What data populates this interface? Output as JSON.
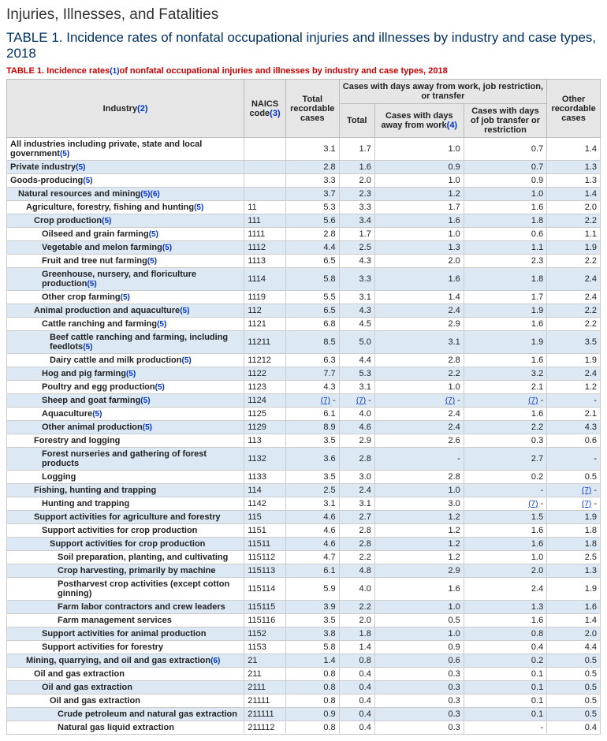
{
  "page_title": "Injuries, Illnesses, and Fatalities",
  "table_title": "TABLE 1. Incidence rates of nonfatal occupational injuries and illnesses by industry and case types, 2018",
  "table_subtitle_prefix": "TABLE 1. Incidence rates",
  "table_subtitle_suffix": "of nonfatal occupational injuries and illnesses by industry and case types, 2018",
  "fn": {
    "1": "(1)",
    "2": "(2)",
    "3": "(3)",
    "4": "(4)",
    "5": "(5)",
    "6": "(6)",
    "7": "(7)"
  },
  "headers": {
    "industry": "Industry",
    "naics": "NAICS code",
    "total_recordable": "Total recordable cases",
    "cases_group": "Cases with days away from work, job restriction, or transfer",
    "total": "Total",
    "days_away": "Cases with days away from work",
    "job_transfer": "Cases with days of job transfer or restriction",
    "other": "Other recordable cases"
  },
  "col_widths": {
    "industry": "40%",
    "naics": "7%",
    "trc": "9%",
    "tot": "6%",
    "daw": "15%",
    "jtr": "14%",
    "other": "9%"
  },
  "rows": [
    {
      "ind": 0,
      "label": "All industries including private, state and local government",
      "fn": "5",
      "naics": "",
      "v": [
        "3.1",
        "1.7",
        "1.0",
        "0.7",
        "1.4"
      ]
    },
    {
      "ind": 0,
      "label": "Private industry",
      "fn": "5",
      "naics": "",
      "v": [
        "2.8",
        "1.6",
        "0.9",
        "0.7",
        "1.3"
      ]
    },
    {
      "ind": 0,
      "label": "Goods-producing",
      "fn": "5",
      "naics": "",
      "v": [
        "3.3",
        "2.0",
        "1.0",
        "0.9",
        "1.3"
      ]
    },
    {
      "ind": 1,
      "label": "Natural resources and mining",
      "fn": "56",
      "naics": "",
      "v": [
        "3.7",
        "2.3",
        "1.2",
        "1.0",
        "1.4"
      ]
    },
    {
      "ind": 2,
      "label": "Agriculture, forestry, fishing and hunting",
      "fn": "5",
      "naics": "11",
      "v": [
        "5.3",
        "3.3",
        "1.7",
        "1.6",
        "2.0"
      ]
    },
    {
      "ind": 3,
      "label": "Crop production",
      "fn": "5",
      "naics": "111",
      "v": [
        "5.6",
        "3.4",
        "1.6",
        "1.8",
        "2.2"
      ]
    },
    {
      "ind": 4,
      "label": "Oilseed and grain farming",
      "fn": "5",
      "naics": "1111",
      "v": [
        "2.8",
        "1.7",
        "1.0",
        "0.6",
        "1.1"
      ]
    },
    {
      "ind": 4,
      "label": "Vegetable and melon farming",
      "fn": "5",
      "naics": "1112",
      "v": [
        "4.4",
        "2.5",
        "1.3",
        "1.1",
        "1.9"
      ]
    },
    {
      "ind": 4,
      "label": "Fruit and tree nut farming",
      "fn": "5",
      "naics": "1113",
      "v": [
        "6.5",
        "4.3",
        "2.0",
        "2.3",
        "2.2"
      ]
    },
    {
      "ind": 4,
      "label": "Greenhouse, nursery, and floriculture production",
      "fn": "5",
      "naics": "1114",
      "v": [
        "5.8",
        "3.3",
        "1.6",
        "1.8",
        "2.4"
      ]
    },
    {
      "ind": 4,
      "label": "Other crop farming",
      "fn": "5",
      "naics": "1119",
      "v": [
        "5.5",
        "3.1",
        "1.4",
        "1.7",
        "2.4"
      ]
    },
    {
      "ind": 3,
      "label": "Animal production and aquaculture",
      "fn": "5",
      "naics": "112",
      "v": [
        "6.5",
        "4.3",
        "2.4",
        "1.9",
        "2.2"
      ]
    },
    {
      "ind": 4,
      "label": "Cattle ranching and farming",
      "fn": "5",
      "naics": "1121",
      "v": [
        "6.8",
        "4.5",
        "2.9",
        "1.6",
        "2.2"
      ]
    },
    {
      "ind": 5,
      "label": "Beef cattle ranching and farming, including feedlots",
      "fn": "5",
      "naics": "11211",
      "v": [
        "8.5",
        "5.0",
        "3.1",
        "1.9",
        "3.5"
      ]
    },
    {
      "ind": 5,
      "label": "Dairy cattle and milk production",
      "fn": "5",
      "naics": "11212",
      "v": [
        "6.3",
        "4.4",
        "2.8",
        "1.6",
        "1.9"
      ]
    },
    {
      "ind": 4,
      "label": "Hog and pig farming",
      "fn": "5",
      "naics": "1122",
      "v": [
        "7.7",
        "5.3",
        "2.2",
        "3.2",
        "2.4"
      ]
    },
    {
      "ind": 4,
      "label": "Poultry and egg production",
      "fn": "5",
      "naics": "1123",
      "v": [
        "4.3",
        "3.1",
        "1.0",
        "2.1",
        "1.2"
      ]
    },
    {
      "ind": 4,
      "label": "Sheep and goat farming",
      "fn": "5",
      "naics": "1124",
      "v": [
        "7-",
        "7-",
        "7-",
        "7-",
        "-"
      ]
    },
    {
      "ind": 4,
      "label": "Aquaculture",
      "fn": "5",
      "naics": "1125",
      "v": [
        "6.1",
        "4.0",
        "2.4",
        "1.6",
        "2.1"
      ]
    },
    {
      "ind": 4,
      "label": "Other animal production",
      "fn": "5",
      "naics": "1129",
      "v": [
        "8.9",
        "4.6",
        "2.4",
        "2.2",
        "4.3"
      ]
    },
    {
      "ind": 3,
      "label": "Forestry and logging",
      "fn": "",
      "naics": "113",
      "v": [
        "3.5",
        "2.9",
        "2.6",
        "0.3",
        "0.6"
      ]
    },
    {
      "ind": 4,
      "label": "Forest nurseries and gathering of forest products",
      "fn": "",
      "naics": "1132",
      "v": [
        "3.6",
        "2.8",
        "-",
        "2.7",
        "-"
      ]
    },
    {
      "ind": 4,
      "label": "Logging",
      "fn": "",
      "naics": "1133",
      "v": [
        "3.5",
        "3.0",
        "2.8",
        "0.2",
        "0.5"
      ]
    },
    {
      "ind": 3,
      "label": "Fishing, hunting and trapping",
      "fn": "",
      "naics": "114",
      "v": [
        "2.5",
        "2.4",
        "1.0",
        "-",
        "7-"
      ]
    },
    {
      "ind": 4,
      "label": "Hunting and trapping",
      "fn": "",
      "naics": "1142",
      "v": [
        "3.1",
        "3.1",
        "3.0",
        "7-",
        "7-"
      ]
    },
    {
      "ind": 3,
      "label": "Support activities for agriculture and forestry",
      "fn": "",
      "naics": "115",
      "v": [
        "4.6",
        "2.7",
        "1.2",
        "1.5",
        "1.9"
      ]
    },
    {
      "ind": 4,
      "label": "Support activities for crop production",
      "fn": "",
      "naics": "1151",
      "v": [
        "4.6",
        "2.8",
        "1.2",
        "1.6",
        "1.8"
      ]
    },
    {
      "ind": 5,
      "label": "Support activities for crop production",
      "fn": "",
      "naics": "11511",
      "v": [
        "4.6",
        "2.8",
        "1.2",
        "1.6",
        "1.8"
      ]
    },
    {
      "ind": 6,
      "label": "Soil preparation, planting, and cultivating",
      "fn": "",
      "naics": "115112",
      "v": [
        "4.7",
        "2.2",
        "1.2",
        "1.0",
        "2.5"
      ]
    },
    {
      "ind": 6,
      "label": "Crop harvesting, primarily by machine",
      "fn": "",
      "naics": "115113",
      "v": [
        "6.1",
        "4.8",
        "2.9",
        "2.0",
        "1.3"
      ]
    },
    {
      "ind": 6,
      "label": "Postharvest crop activities (except cotton ginning)",
      "fn": "",
      "naics": "115114",
      "v": [
        "5.9",
        "4.0",
        "1.6",
        "2.4",
        "1.9"
      ]
    },
    {
      "ind": 6,
      "label": "Farm labor contractors and crew leaders",
      "fn": "",
      "naics": "115115",
      "v": [
        "3.9",
        "2.2",
        "1.0",
        "1.3",
        "1.6"
      ]
    },
    {
      "ind": 6,
      "label": "Farm management services",
      "fn": "",
      "naics": "115116",
      "v": [
        "3.5",
        "2.0",
        "0.5",
        "1.6",
        "1.4"
      ]
    },
    {
      "ind": 4,
      "label": "Support activities for animal production",
      "fn": "",
      "naics": "1152",
      "v": [
        "3.8",
        "1.8",
        "1.0",
        "0.8",
        "2.0"
      ]
    },
    {
      "ind": 4,
      "label": "Support activities for forestry",
      "fn": "",
      "naics": "1153",
      "v": [
        "5.8",
        "1.4",
        "0.9",
        "0.4",
        "4.4"
      ]
    },
    {
      "ind": 2,
      "label": "Mining, quarrying, and oil and gas extraction",
      "fn": "6",
      "naics": "21",
      "v": [
        "1.4",
        "0.8",
        "0.6",
        "0.2",
        "0.5"
      ]
    },
    {
      "ind": 3,
      "label": "Oil and gas extraction",
      "fn": "",
      "naics": "211",
      "v": [
        "0.8",
        "0.4",
        "0.3",
        "0.1",
        "0.5"
      ]
    },
    {
      "ind": 4,
      "label": "Oil and gas extraction",
      "fn": "",
      "naics": "2111",
      "v": [
        "0.8",
        "0.4",
        "0.3",
        "0.1",
        "0.5"
      ]
    },
    {
      "ind": 5,
      "label": "Oil and gas extraction",
      "fn": "",
      "naics": "21111",
      "v": [
        "0.8",
        "0.4",
        "0.3",
        "0.1",
        "0.5"
      ]
    },
    {
      "ind": 6,
      "label": "Crude petroleum and natural gas extraction",
      "fn": "",
      "naics": "211111",
      "v": [
        "0.9",
        "0.4",
        "0.3",
        "0.1",
        "0.5"
      ]
    },
    {
      "ind": 6,
      "label": "Natural gas liquid extraction",
      "fn": "",
      "naics": "211112",
      "v": [
        "0.8",
        "0.4",
        "0.3",
        "-",
        "0.4"
      ]
    }
  ]
}
